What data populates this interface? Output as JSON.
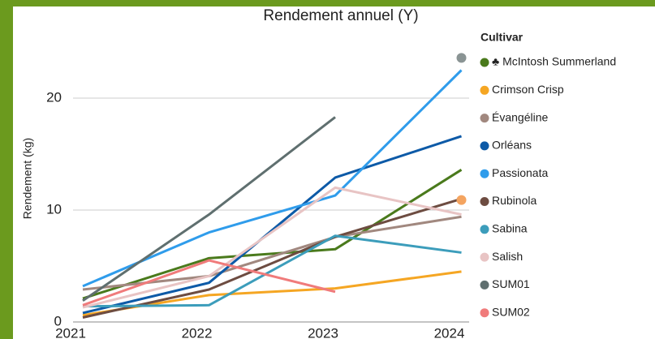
{
  "chart_data": {
    "type": "line",
    "title": "Rendement annuel (Y)",
    "y_label": "Rendement (kg)",
    "legend_title": "Cultivar",
    "x": [
      "2021",
      "2022",
      "2023",
      "2024"
    ],
    "ylim": [
      0,
      25
    ],
    "yticks": [
      0,
      10,
      20
    ],
    "grid": true,
    "legend": "right",
    "series": [
      {
        "name": "♣ McIntosh Summerland",
        "color": "#4a7a1c",
        "values": [
          2.1,
          5.7,
          6.5,
          13.6
        ]
      },
      {
        "name": "Crimson Crisp",
        "color": "#f5a623",
        "values": [
          0.6,
          2.4,
          3.0,
          4.5
        ]
      },
      {
        "name": "Évangéline",
        "color": "#a1887f",
        "values": [
          2.9,
          4.1,
          7.6,
          9.4
        ]
      },
      {
        "name": "Orléans",
        "color": "#0d5aa7",
        "values": [
          0.8,
          3.5,
          12.9,
          16.6
        ]
      },
      {
        "name": "Passionata",
        "color": "#2f9ceb",
        "values": [
          3.2,
          8.0,
          11.3,
          22.5
        ]
      },
      {
        "name": "Rubinola",
        "color": "#6d4c41",
        "values": [
          0.4,
          2.9,
          7.6,
          11.0
        ]
      },
      {
        "name": "Sabina",
        "color": "#3c9dbb",
        "values": [
          1.4,
          1.5,
          7.7,
          6.2
        ]
      },
      {
        "name": "Salish",
        "color": "#e8c4c4",
        "values": [
          1.3,
          4.1,
          12.0,
          9.6
        ]
      },
      {
        "name": "SUM01",
        "color": "#5f6f6f",
        "values": [
          1.9,
          9.6,
          18.3,
          null
        ]
      },
      {
        "name": "SUM02",
        "color": "#f07b7b",
        "values": [
          1.5,
          5.5,
          2.7,
          null
        ]
      }
    ],
    "highlight_points": [
      {
        "x": "2024",
        "value": 23.6,
        "color": "#8a9494"
      },
      {
        "x": "2024",
        "value": 10.9,
        "color": "#f4a460"
      }
    ]
  }
}
